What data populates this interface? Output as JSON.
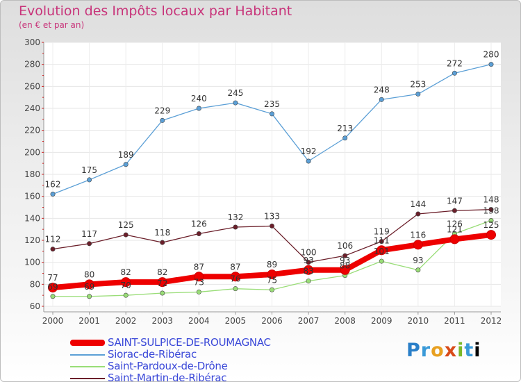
{
  "chart_data": {
    "type": "line",
    "title": "Evolution des Impôts locaux par Habitant",
    "subtitle": "(en € et par an)",
    "x": [
      "2000",
      "2001",
      "2002",
      "2003",
      "2004",
      "2005",
      "2006",
      "2007",
      "2008",
      "2009",
      "2010",
      "2011",
      "2012"
    ],
    "ylim": [
      60,
      300
    ],
    "yticks": [
      60,
      80,
      100,
      120,
      140,
      160,
      180,
      200,
      220,
      240,
      260,
      280,
      300
    ],
    "series": [
      {
        "name": "SAINT-SULPICE-DE-ROUMAGNAC",
        "color": "#ee0000",
        "values": [
          77,
          80,
          82,
          82,
          87,
          87,
          89,
          93,
          93,
          111,
          116,
          121,
          125
        ]
      },
      {
        "name": "Siorac-de-Ribérac",
        "color": "#5b9fd6",
        "values": [
          162,
          175,
          189,
          229,
          240,
          245,
          235,
          192,
          213,
          248,
          253,
          272,
          280
        ]
      },
      {
        "name": "Saint-Pardoux-de-Drône",
        "color": "#99dd77",
        "values": [
          69,
          69,
          70,
          72,
          73,
          76,
          75,
          83,
          88,
          101,
          93,
          126,
          138
        ]
      },
      {
        "name": "Saint-Martin-de-Ribérac",
        "color": "#6b1f2a",
        "values": [
          112,
          117,
          125,
          118,
          126,
          132,
          133,
          100,
          106,
          119,
          144,
          147,
          148
        ]
      }
    ]
  },
  "logo": [
    "P",
    "r",
    "o",
    "x",
    "i",
    "t",
    "i"
  ]
}
